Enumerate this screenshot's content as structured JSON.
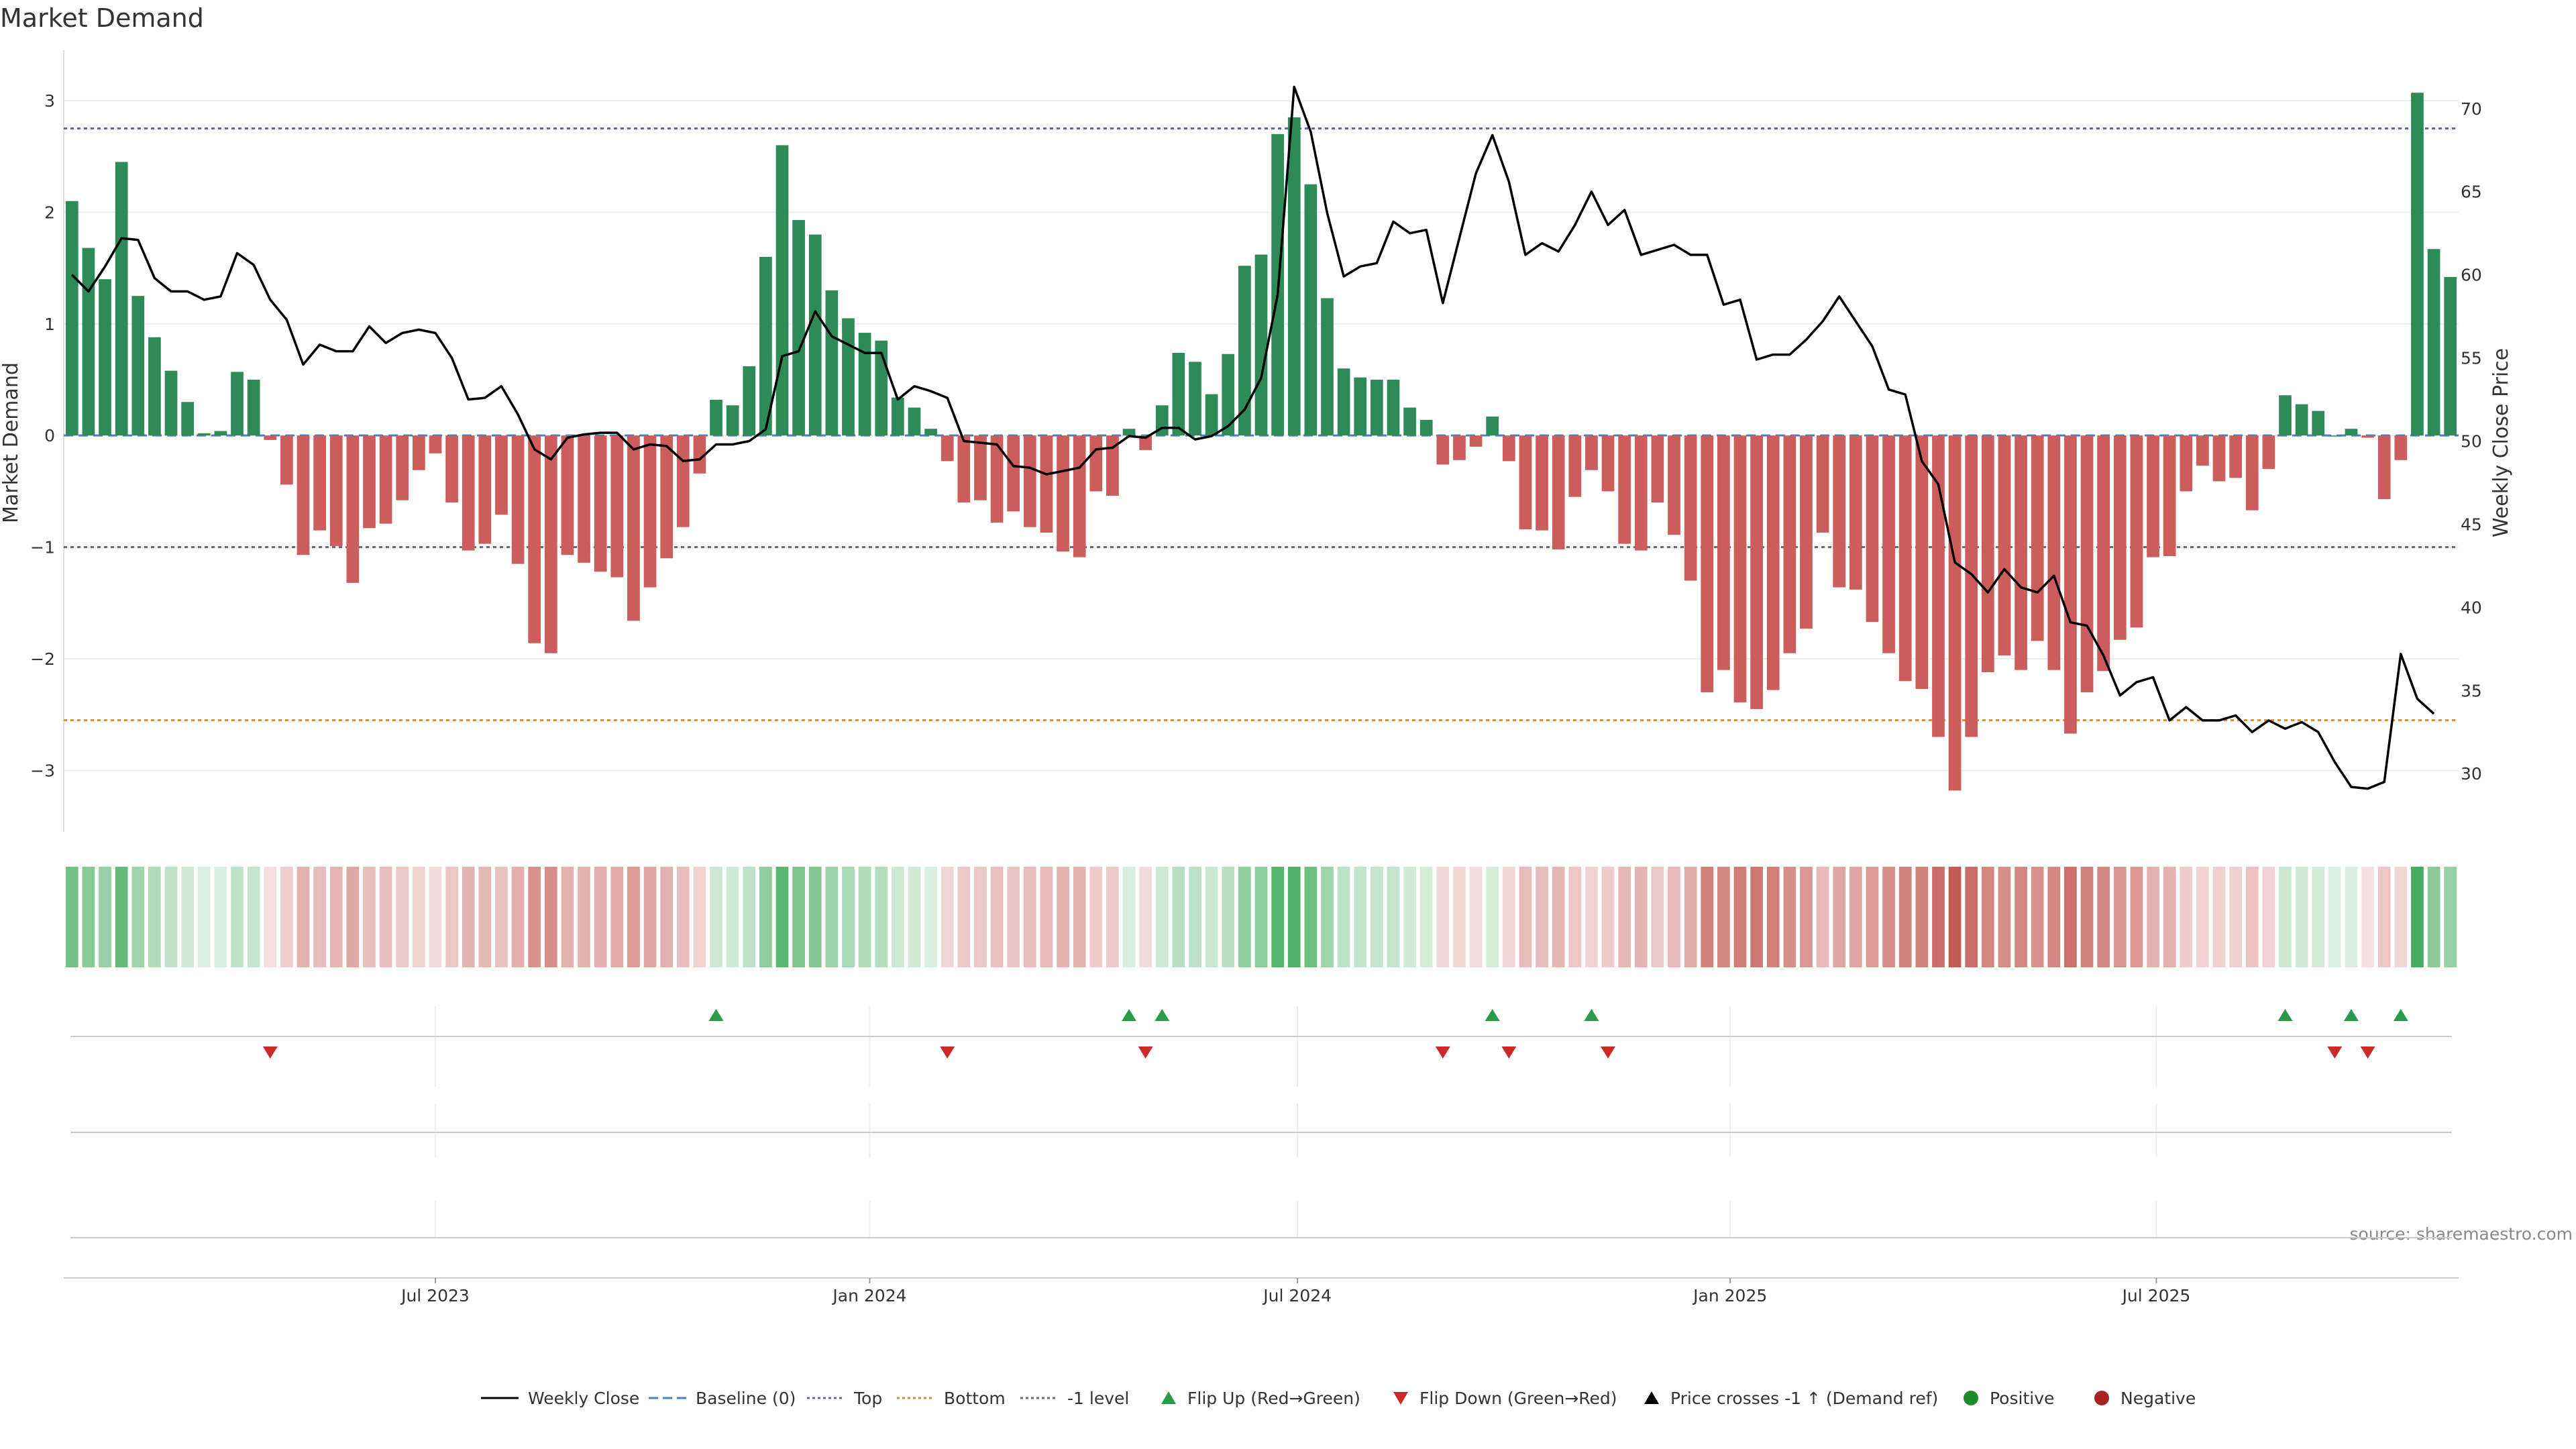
{
  "chart_data": {
    "type": "bar",
    "title": "Market Demand",
    "ylabel_left": "Market Demand",
    "ylabel_right": "Weekly Close Price",
    "source": "source: sharemaestro.com",
    "ylim_left": [
      -3.55,
      3.45
    ],
    "ylim_right": [
      26.5,
      73.5
    ],
    "yticks_left": [
      3,
      2,
      1,
      0,
      -1,
      -2,
      -3
    ],
    "ytick_labels_left": [
      "3",
      "2",
      "1",
      "0",
      "−1",
      "−2",
      "−3"
    ],
    "yticks_right": [
      70,
      65,
      60,
      55,
      50,
      45,
      40,
      35,
      30
    ],
    "ytick_labels_right": [
      "70",
      "65",
      "60",
      "55",
      "50",
      "45",
      "40",
      "35",
      "30"
    ],
    "x_ticks": [
      {
        "label": "Jul 2023",
        "index": 22
      },
      {
        "label": "Jan 2024",
        "index": 48.3
      },
      {
        "label": "Jul 2024",
        "index": 74.2
      },
      {
        "label": "Jan 2025",
        "index": 100.4
      },
      {
        "label": "Jul 2025",
        "index": 126.2
      }
    ],
    "reference_lines": {
      "top": 2.75,
      "bottom": -2.55,
      "minus_one": -1,
      "baseline": 0
    },
    "demand": [
      2.1,
      1.68,
      1.4,
      2.45,
      1.25,
      0.88,
      0.58,
      0.3,
      0.02,
      0.04,
      0.57,
      0.5,
      -0.04,
      -0.44,
      -1.07,
      -0.85,
      -0.99,
      -1.32,
      -0.83,
      -0.79,
      -0.58,
      -0.31,
      -0.16,
      -0.6,
      -1.03,
      -0.97,
      -0.71,
      -1.15,
      -1.86,
      -1.95,
      -1.07,
      -1.14,
      -1.22,
      -1.27,
      -1.66,
      -1.36,
      -1.1,
      -0.82,
      -0.34,
      0.32,
      0.27,
      0.62,
      1.6,
      2.6,
      1.93,
      1.8,
      1.3,
      1.05,
      0.92,
      0.85,
      0.34,
      0.25,
      0.06,
      -0.23,
      -0.6,
      -0.58,
      -0.78,
      -0.68,
      -0.82,
      -0.87,
      -1.04,
      -1.09,
      -0.5,
      -0.54,
      0.06,
      -0.13,
      0.27,
      0.74,
      0.66,
      0.37,
      0.73,
      1.52,
      1.62,
      2.7,
      2.85,
      2.25,
      1.23,
      0.6,
      0.52,
      0.5,
      0.5,
      0.25,
      0.14,
      -0.26,
      -0.22,
      -0.1,
      0.17,
      -0.23,
      -0.84,
      -0.85,
      -1.02,
      -0.55,
      -0.31,
      -0.5,
      -0.97,
      -1.03,
      -0.6,
      -0.89,
      -1.3,
      -2.3,
      -2.1,
      -2.39,
      -2.45,
      -2.28,
      -1.95,
      -1.73,
      -0.87,
      -1.36,
      -1.38,
      -1.67,
      -1.95,
      -2.2,
      -2.27,
      -2.7,
      -3.18,
      -2.7,
      -2.12,
      -1.97,
      -2.1,
      -1.84,
      -2.1,
      -2.67,
      -2.3,
      -2.11,
      -1.83,
      -1.72,
      -1.09,
      -1.08,
      -0.5,
      -0.27,
      -0.41,
      -0.38,
      -0.67,
      -0.3,
      0.36,
      0.28,
      0.22,
      0.0,
      0.06,
      -0.02,
      -0.57,
      -0.22,
      3.07,
      1.67,
      1.42
    ],
    "weekly_close": [
      60,
      59,
      60.5,
      62.2,
      62.1,
      59.8,
      59,
      59,
      58.5,
      58.7,
      61.3,
      60.6,
      58.5,
      57.3,
      54.6,
      55.8,
      55.4,
      55.4,
      56.9,
      55.9,
      56.5,
      56.7,
      56.5,
      55,
      52.5,
      52.6,
      53.3,
      51.6,
      49.5,
      48.9,
      50.2,
      50.4,
      50.5,
      50.5,
      49.5,
      49.8,
      49.7,
      48.8,
      48.9,
      49.8,
      49.8,
      50,
      50.7,
      55.1,
      55.4,
      57.8,
      56.3,
      55.8,
      55.3,
      55.3,
      52.5,
      53.3,
      53,
      52.6,
      50,
      49.9,
      49.8,
      48.5,
      48.4,
      48,
      48.2,
      48.4,
      49.5,
      49.6,
      50.3,
      50.2,
      50.8,
      50.8,
      50.1,
      50.3,
      50.9,
      51.9,
      53.8,
      58.8,
      71.3,
      68.6,
      63.7,
      59.9,
      60.5,
      60.7,
      63.2,
      62.5,
      62.7,
      58.3,
      62.2,
      66.1,
      68.4,
      65.6,
      61.2,
      61.9,
      61.4,
      63,
      65,
      63,
      63.9,
      61.2,
      61.5,
      61.8,
      61.2,
      61.2,
      58.2,
      58.5,
      54.9,
      55.2,
      55.2,
      56.1,
      57.2,
      58.7,
      57.2,
      55.7,
      53.1,
      52.8,
      48.8,
      47.4,
      42.7,
      42,
      40.9,
      42.3,
      41.2,
      40.9,
      41.9,
      39.1,
      38.9,
      37.1,
      34.7,
      35.5,
      35.8,
      33.2,
      34,
      33.2,
      33.2,
      33.5,
      32.5,
      33.2,
      32.7,
      33.1,
      32.5,
      30.7,
      29.2,
      29.1,
      29.5,
      37.2,
      34.5,
      33.6
    ],
    "flip_up_indices": [
      39,
      64,
      66,
      86,
      92,
      134,
      138,
      141
    ],
    "flip_down_indices": [
      12,
      53,
      65,
      83,
      87,
      93,
      137,
      139
    ],
    "legend": [
      {
        "label": "Weekly Close",
        "symbol": "line-solid",
        "color": "#000000"
      },
      {
        "label": "Baseline (0)",
        "symbol": "line-dashed",
        "color": "#4a7fc1"
      },
      {
        "label": "Top",
        "symbol": "line-dotted",
        "color": "#6a5fb5"
      },
      {
        "label": "Bottom",
        "symbol": "line-dotted",
        "color": "#e0892c"
      },
      {
        "label": "-1 level",
        "symbol": "line-dotted",
        "color": "#666677"
      },
      {
        "label": "Flip Up (Red→Green)",
        "symbol": "triangle-up",
        "color": "#2a9a4a"
      },
      {
        "label": "Flip Down (Green→Red)",
        "symbol": "triangle-down",
        "color": "#cc2a2a"
      },
      {
        "label": "Price crosses -1 ↑ (Demand ref)",
        "symbol": "triangle-up",
        "color": "#000000"
      },
      {
        "label": "Positive",
        "symbol": "circle",
        "color": "#1e8a2a"
      },
      {
        "label": "Negative",
        "symbol": "circle",
        "color": "#a82222"
      }
    ],
    "colors": {
      "positive": "#2e8b57",
      "negative": "#cd5c5c",
      "price": "#000000",
      "heat_positive": "#3aa755",
      "heat_negative": "#c2554f"
    }
  }
}
